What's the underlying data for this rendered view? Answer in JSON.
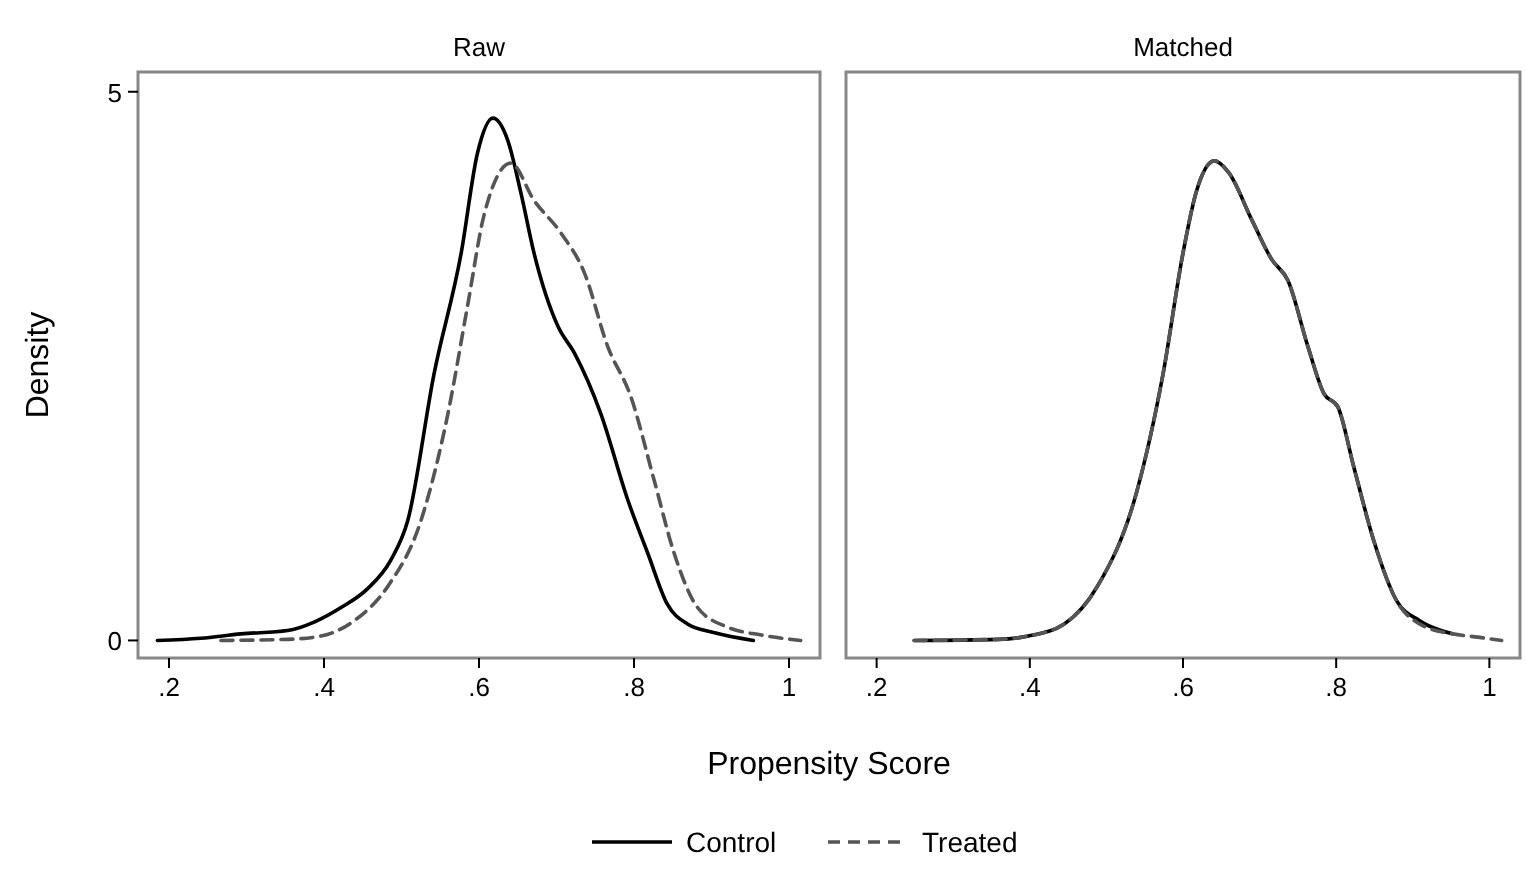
{
  "chart_data": [
    {
      "type": "line",
      "title": "Raw",
      "ylabel": "Density",
      "xlabel": "Propensity Score",
      "legend": "bottom",
      "grid": false,
      "xlim": [
        0.16,
        1.04
      ],
      "ylim": [
        -0.16,
        5.18
      ],
      "xticks": [
        {
          "value": 0.2,
          "label": ".2"
        },
        {
          "value": 0.4,
          "label": ".4"
        },
        {
          "value": 0.6,
          "label": ".6"
        },
        {
          "value": 0.8,
          "label": ".8"
        },
        1
      ],
      "yticks": [
        0,
        5
      ],
      "series": [
        {
          "name": "Control",
          "color": "#000000",
          "line_style": "solid",
          "x": [
            0.185,
            0.241,
            0.293,
            0.353,
            0.388,
            0.422,
            0.456,
            0.486,
            0.508,
            0.542,
            0.577,
            0.598,
            0.618,
            0.637,
            0.654,
            0.671,
            0.702,
            0.723,
            0.757,
            0.792,
            0.818,
            0.843,
            0.869,
            0.904,
            0.954
          ],
          "values": [
            0,
            0.02,
            0.06,
            0.09,
            0.17,
            0.3,
            0.47,
            0.73,
            1.09,
            2.43,
            3.53,
            4.44,
            4.76,
            4.56,
            4.08,
            3.53,
            2.86,
            2.62,
            2.07,
            1.28,
            0.79,
            0.33,
            0.15,
            0.07,
            0
          ]
        },
        {
          "name": "Treated",
          "color": "#555555",
          "line_style": "dashed",
          "x": [
            0.267,
            0.353,
            0.396,
            0.439,
            0.482,
            0.525,
            0.56,
            0.585,
            0.607,
            0.641,
            0.671,
            0.706,
            0.736,
            0.766,
            0.796,
            0.826,
            0.852,
            0.882,
            0.921,
            0.964,
            1.015
          ],
          "values": [
            0,
            0.01,
            0.04,
            0.18,
            0.49,
            1.09,
            2.07,
            3.04,
            3.89,
            4.35,
            4.01,
            3.71,
            3.35,
            2.68,
            2.22,
            1.46,
            0.79,
            0.3,
            0.12,
            0.05,
            0
          ]
        }
      ]
    },
    {
      "type": "line",
      "title": "Matched",
      "tick_labels": "x",
      "xlim": [
        0.16,
        1.04
      ],
      "ylim": [
        -0.16,
        5.18
      ],
      "grid": false,
      "xticks": [
        {
          "value": 0.2,
          "label": ".2"
        },
        {
          "value": 0.4,
          "label": ".4"
        },
        {
          "value": 0.6,
          "label": ".6"
        },
        {
          "value": 0.8,
          "label": ".8"
        },
        1
      ],
      "series": [
        {
          "color": "#000000",
          "line_style": "solid",
          "x": [
            0.249,
            0.359,
            0.398,
            0.445,
            0.488,
            0.539,
            0.574,
            0.6,
            0.617,
            0.641,
            0.66,
            0.69,
            0.716,
            0.737,
            0.763,
            0.784,
            0.802,
            0.823,
            0.849,
            0.879,
            0.909,
            0.952
          ],
          "values": [
            0,
            0.01,
            0.04,
            0.15,
            0.49,
            1.34,
            2.43,
            3.53,
            4.08,
            4.37,
            4.26,
            3.83,
            3.47,
            3.28,
            2.68,
            2.25,
            2.13,
            1.58,
            0.91,
            0.36,
            0.18,
            0.06
          ]
        },
        {
          "color": "#555555",
          "line_style": "dashed",
          "x": [
            0.249,
            0.359,
            0.398,
            0.445,
            0.488,
            0.539,
            0.574,
            0.6,
            0.617,
            0.641,
            0.66,
            0.69,
            0.716,
            0.737,
            0.763,
            0.784,
            0.802,
            0.823,
            0.849,
            0.879,
            0.909,
            0.952,
            0.985,
            1.016
          ],
          "values": [
            0,
            0.01,
            0.04,
            0.15,
            0.49,
            1.34,
            2.43,
            3.53,
            4.08,
            4.37,
            4.26,
            3.83,
            3.47,
            3.28,
            2.68,
            2.25,
            2.13,
            1.58,
            0.91,
            0.36,
            0.15,
            0.06,
            0.03,
            0
          ]
        }
      ]
    }
  ]
}
